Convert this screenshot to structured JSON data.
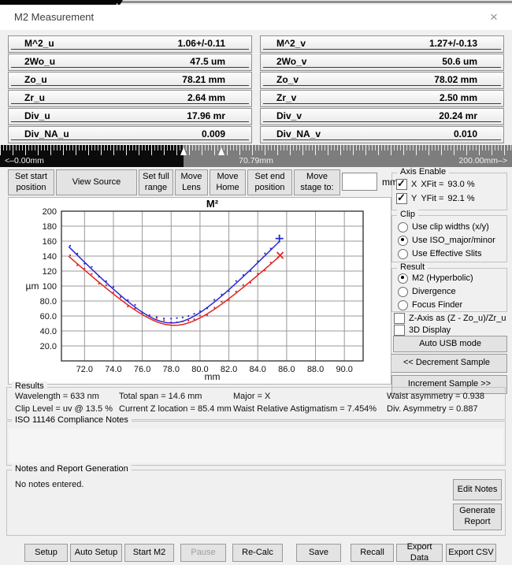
{
  "titlebar": {
    "title": "M2 Measurement",
    "close": "×"
  },
  "tables": {
    "left": [
      {
        "label": "M^2_u",
        "value": "1.06+/-0.11"
      },
      {
        "label": "2Wo_u",
        "value": "47.5 um"
      },
      {
        "label": "Zo_u",
        "value": "78.21 mm"
      },
      {
        "label": "Zr_u",
        "value": "2.64 mm"
      },
      {
        "label": "Div_u",
        "value": "17.96 mr"
      },
      {
        "label": "Div_NA_u",
        "value": "0.009"
      }
    ],
    "right": [
      {
        "label": "M^2_v",
        "value": "1.27+/-0.13"
      },
      {
        "label": "2Wo_v",
        "value": "50.6 um"
      },
      {
        "label": "Zo_v",
        "value": "78.02 mm"
      },
      {
        "label": "Zr_v",
        "value": "2.50 mm"
      },
      {
        "label": "Div_v",
        "value": "20.24 mr"
      },
      {
        "label": "Div_NA_v",
        "value": "0.010"
      }
    ]
  },
  "ruler": {
    "left_label": "<–0.00mm",
    "center_label": "70.79mm",
    "right_label": "200.00mm–>"
  },
  "toolbar": {
    "set_start": "Set start position",
    "view_source": "View Source",
    "set_full_range": "Set full range",
    "move_lens": "Move Lens",
    "move_home": "Move Home",
    "set_end": "Set end position",
    "move_stage": "Move stage to:",
    "stage_value": "",
    "unit": "mm"
  },
  "axis_enable": {
    "title": "Axis Enable",
    "x": {
      "label": "X",
      "fit_label": "XFit =",
      "fit_value": "93.0 %",
      "checked": true
    },
    "y": {
      "label": "Y",
      "fit_label": "YFit =",
      "fit_value": "92.1 %",
      "checked": true
    }
  },
  "clip": {
    "title": "Clip",
    "options": [
      {
        "label": "Use clip widths (x/y)",
        "selected": false
      },
      {
        "label": "Use ISO_major/minor",
        "selected": true
      },
      {
        "label": "Use Effective Slits",
        "selected": false
      }
    ]
  },
  "result": {
    "title": "Result",
    "options": [
      {
        "label": "M2 (Hyperbolic)",
        "selected": true
      },
      {
        "label": "Divergence",
        "selected": false
      },
      {
        "label": "Focus Finder",
        "selected": false
      }
    ]
  },
  "extra_toggles": [
    {
      "label": "Z-Axis as (Z - Zo_u)/Zr_u",
      "checked": false
    },
    {
      "label": "3D Display",
      "checked": false
    }
  ],
  "side_buttons": {
    "auto_usb": "Auto USB mode",
    "decrement": "<< Decrement Sample",
    "increment": "Increment Sample >>"
  },
  "chart_data": {
    "type": "line+scatter",
    "title": "M²",
    "xlabel": "mm",
    "ylabel": "µm",
    "xlim": [
      70.4,
      91.3
    ],
    "ylim": [
      0,
      200
    ],
    "grid": true,
    "xticks": [
      72,
      74,
      76,
      78,
      80,
      82,
      84,
      86,
      88,
      90
    ],
    "xtick_labels": [
      "72.0",
      "74.0",
      "76.0",
      "78.0",
      "80.0",
      "82.0",
      "84.0",
      "86.0",
      "88.0",
      "90.0"
    ],
    "yticks": [
      20,
      40,
      60,
      80,
      100,
      120,
      140,
      160,
      180,
      200
    ],
    "ytick_labels": [
      "20.0",
      "40.0",
      "60.0",
      "80.0",
      "100",
      "120",
      "140",
      "160",
      "180",
      "200"
    ],
    "series": [
      {
        "name": "Y (v) hyperbolic fit",
        "color": "#2a2ad0",
        "points": [
          [
            70.9,
            152.7
          ],
          [
            71.3,
            145.1
          ],
          [
            71.7,
            137.6
          ],
          [
            72.1,
            130.1
          ],
          [
            72.5,
            122.6
          ],
          [
            72.9,
            115.3
          ],
          [
            73.3,
            108.1
          ],
          [
            73.7,
            101.0
          ],
          [
            74.1,
            94.1
          ],
          [
            74.5,
            87.4
          ],
          [
            74.9,
            80.9
          ],
          [
            75.3,
            74.8
          ],
          [
            75.7,
            69.0
          ],
          [
            76.1,
            63.8
          ],
          [
            76.5,
            59.2
          ],
          [
            76.9,
            55.4
          ],
          [
            77.3,
            52.7
          ],
          [
            77.7,
            51.0
          ],
          [
            78.1,
            50.6
          ],
          [
            78.5,
            51.5
          ],
          [
            78.9,
            53.6
          ],
          [
            79.3,
            56.8
          ],
          [
            79.7,
            61.0
          ],
          [
            80.1,
            65.8
          ],
          [
            80.5,
            71.3
          ],
          [
            80.9,
            77.2
          ],
          [
            81.3,
            83.5
          ],
          [
            81.7,
            90.0
          ],
          [
            82.1,
            96.9
          ],
          [
            82.5,
            103.8
          ],
          [
            82.9,
            111.0
          ],
          [
            83.3,
            118.2
          ],
          [
            83.7,
            125.6
          ],
          [
            84.1,
            133.1
          ],
          [
            84.5,
            140.6
          ],
          [
            84.9,
            148.2
          ],
          [
            85.3,
            155.8
          ],
          [
            85.5,
            159.6
          ]
        ]
      },
      {
        "name": "X (u) hyperbolic fit",
        "color": "#e02424",
        "points": [
          [
            70.9,
            139.8
          ],
          [
            71.3,
            133.1
          ],
          [
            71.7,
            126.4
          ],
          [
            72.1,
            119.8
          ],
          [
            72.5,
            113.2
          ],
          [
            72.9,
            106.7
          ],
          [
            73.3,
            100.3
          ],
          [
            73.7,
            94.0
          ],
          [
            74.1,
            87.9
          ],
          [
            74.5,
            81.9
          ],
          [
            74.9,
            76.2
          ],
          [
            75.3,
            70.7
          ],
          [
            75.7,
            65.5
          ],
          [
            76.1,
            60.8
          ],
          [
            76.5,
            56.6
          ],
          [
            76.9,
            53.0
          ],
          [
            77.3,
            50.2
          ],
          [
            77.7,
            48.4
          ],
          [
            78.1,
            47.5
          ],
          [
            78.5,
            47.8
          ],
          [
            78.9,
            49.1
          ],
          [
            79.3,
            51.4
          ],
          [
            79.7,
            54.5
          ],
          [
            80.1,
            58.4
          ],
          [
            80.5,
            62.9
          ],
          [
            80.9,
            67.8
          ],
          [
            81.3,
            73.1
          ],
          [
            81.7,
            78.7
          ],
          [
            82.1,
            84.6
          ],
          [
            82.5,
            90.6
          ],
          [
            82.9,
            96.8
          ],
          [
            83.3,
            103.2
          ],
          [
            83.7,
            109.6
          ],
          [
            84.1,
            116.1
          ],
          [
            84.5,
            122.7
          ],
          [
            84.9,
            129.4
          ],
          [
            85.3,
            136.1
          ],
          [
            85.5,
            139.5
          ]
        ]
      }
    ],
    "scatter": [
      {
        "name": "Y (v) measured",
        "color": "#2a2ad0",
        "points": [
          [
            71.0,
            153.8
          ],
          [
            71.5,
            143.3
          ],
          [
            72.0,
            129.9
          ],
          [
            72.5,
            125.6
          ],
          [
            73.0,
            112.5
          ],
          [
            73.5,
            106.5
          ],
          [
            74.0,
            98.8
          ],
          [
            74.5,
            85.4
          ],
          [
            75.0,
            81.3
          ],
          [
            75.5,
            74.9
          ],
          [
            76.0,
            64.1
          ],
          [
            76.5,
            61.2
          ],
          [
            77.0,
            58.6
          ],
          [
            77.5,
            56.7
          ],
          [
            78.0,
            56.6
          ],
          [
            78.4,
            57.2
          ],
          [
            78.8,
            58.0
          ],
          [
            79.2,
            60.0
          ],
          [
            79.6,
            62.9
          ],
          [
            80.0,
            66.5
          ],
          [
            80.5,
            70.3
          ],
          [
            81.0,
            81.7
          ],
          [
            81.5,
            88.7
          ],
          [
            82.0,
            93.1
          ],
          [
            82.5,
            106.8
          ],
          [
            83.0,
            114.8
          ],
          [
            83.5,
            119.9
          ],
          [
            84.0,
            133.2
          ],
          [
            84.5,
            143.6
          ],
          [
            84.9,
            150.2
          ]
        ]
      },
      {
        "name": "X (u) measured",
        "color": "#e02424",
        "points": [
          [
            71.0,
            141.1
          ],
          [
            71.5,
            127.7
          ],
          [
            72.0,
            123.4
          ],
          [
            72.5,
            116.2
          ],
          [
            73.0,
            103.1
          ],
          [
            73.5,
            101.1
          ],
          [
            74.0,
            91.4
          ],
          [
            74.5,
            84.9
          ],
          [
            75.0,
            72.8
          ],
          [
            75.5,
            70.1
          ],
          [
            76.0,
            64.9
          ],
          [
            76.5,
            60.6
          ],
          [
            77.0,
            57.3
          ],
          [
            77.5,
            54.2
          ],
          [
            78.0,
            51.7
          ],
          [
            78.4,
            51.6
          ],
          [
            78.8,
            52.7
          ],
          [
            79.2,
            53.7
          ],
          [
            79.6,
            55.7
          ],
          [
            80.0,
            60.4
          ],
          [
            80.5,
            60.9
          ],
          [
            81.0,
            71.1
          ],
          [
            81.5,
            78.9
          ],
          [
            82.0,
            81.1
          ],
          [
            82.5,
            92.6
          ],
          [
            83.0,
            101.4
          ],
          [
            83.5,
            104.4
          ],
          [
            84.0,
            116.5
          ],
          [
            84.5,
            120.7
          ],
          [
            84.9,
            131.4
          ]
        ]
      }
    ],
    "markers": [
      {
        "shape": "plus",
        "color": "#2a2ad0",
        "x": 85.5,
        "y": 163.5
      },
      {
        "shape": "x",
        "color": "#e02424",
        "x": 85.55,
        "y": 141.0
      }
    ],
    "legend": "none"
  },
  "results_panel": {
    "title": "Results",
    "rows": [
      [
        "Wavelength = 633 nm",
        "Total span = 14.6 mm",
        "Major = X",
        "Waist asymmetry = 0.938"
      ],
      [
        "Clip Level = uv @ 13.5 %",
        "Current Z location  = 85.4 mm",
        "Waist Relative Astigmatism = 7.454%",
        "Div. Asymmetry = 0.887"
      ]
    ]
  },
  "iso_panel": {
    "title": "ISO 11146 Compliance Notes",
    "content": ""
  },
  "notes_panel": {
    "title": "Notes and Report Generation",
    "content": "No notes entered.",
    "edit_button": "Edit Notes",
    "report_button": "Generate Report"
  },
  "bottom_bar": {
    "buttons": [
      {
        "label": "Setup",
        "enabled": true
      },
      {
        "label": "Auto Setup",
        "enabled": true
      },
      {
        "label": "Start M2",
        "enabled": true
      },
      {
        "label": "Pause",
        "enabled": false
      },
      {
        "label": "Re-Calc",
        "enabled": true
      },
      {
        "label": "Save",
        "enabled": true
      },
      {
        "label": "Recall",
        "enabled": true
      },
      {
        "label": "Export Data",
        "enabled": true
      },
      {
        "label": "Export CSV",
        "enabled": true
      }
    ]
  },
  "colors": {
    "window_bg": "#f0f0f0",
    "ruler_bg": "#7d7d7d",
    "ruler_black": "#0b0b0b",
    "series_blue": "#2a2ad0",
    "series_red": "#e02424"
  }
}
